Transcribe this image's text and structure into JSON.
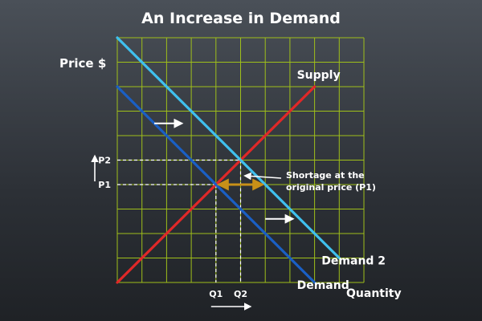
{
  "chart_data": {
    "type": "line",
    "title": "An Increase in Demand",
    "ylabel": "Price $",
    "xlabel": "Quantity",
    "grid": true,
    "xlim": [
      0,
      10
    ],
    "ylim": [
      0,
      10
    ],
    "series": [
      {
        "name": "Supply",
        "color": "#e02828",
        "points": [
          [
            0,
            0
          ],
          [
            8,
            8
          ]
        ]
      },
      {
        "name": "Demand",
        "color": "#1a5fc4",
        "points": [
          [
            0,
            8
          ],
          [
            8,
            0
          ]
        ]
      },
      {
        "name": "Demand 2",
        "color": "#3fc0ee",
        "points": [
          [
            0,
            10
          ],
          [
            9,
            1
          ]
        ]
      }
    ],
    "equilibria": [
      {
        "x": 4,
        "y": 4,
        "xlabel": "Q1",
        "ylabel": "P1"
      },
      {
        "x": 5,
        "y": 5,
        "xlabel": "Q2",
        "ylabel": "P2"
      }
    ],
    "shortage": {
      "y": 4,
      "x_from": 4,
      "x_to": 6,
      "color": "#c89018"
    },
    "annotation": {
      "lines": [
        "Shortage at the",
        "original price (P1)"
      ]
    },
    "shift_arrows": [
      {
        "x": 1.5,
        "y": 6.5
      },
      {
        "x": 6,
        "y": 2.6
      }
    ]
  }
}
